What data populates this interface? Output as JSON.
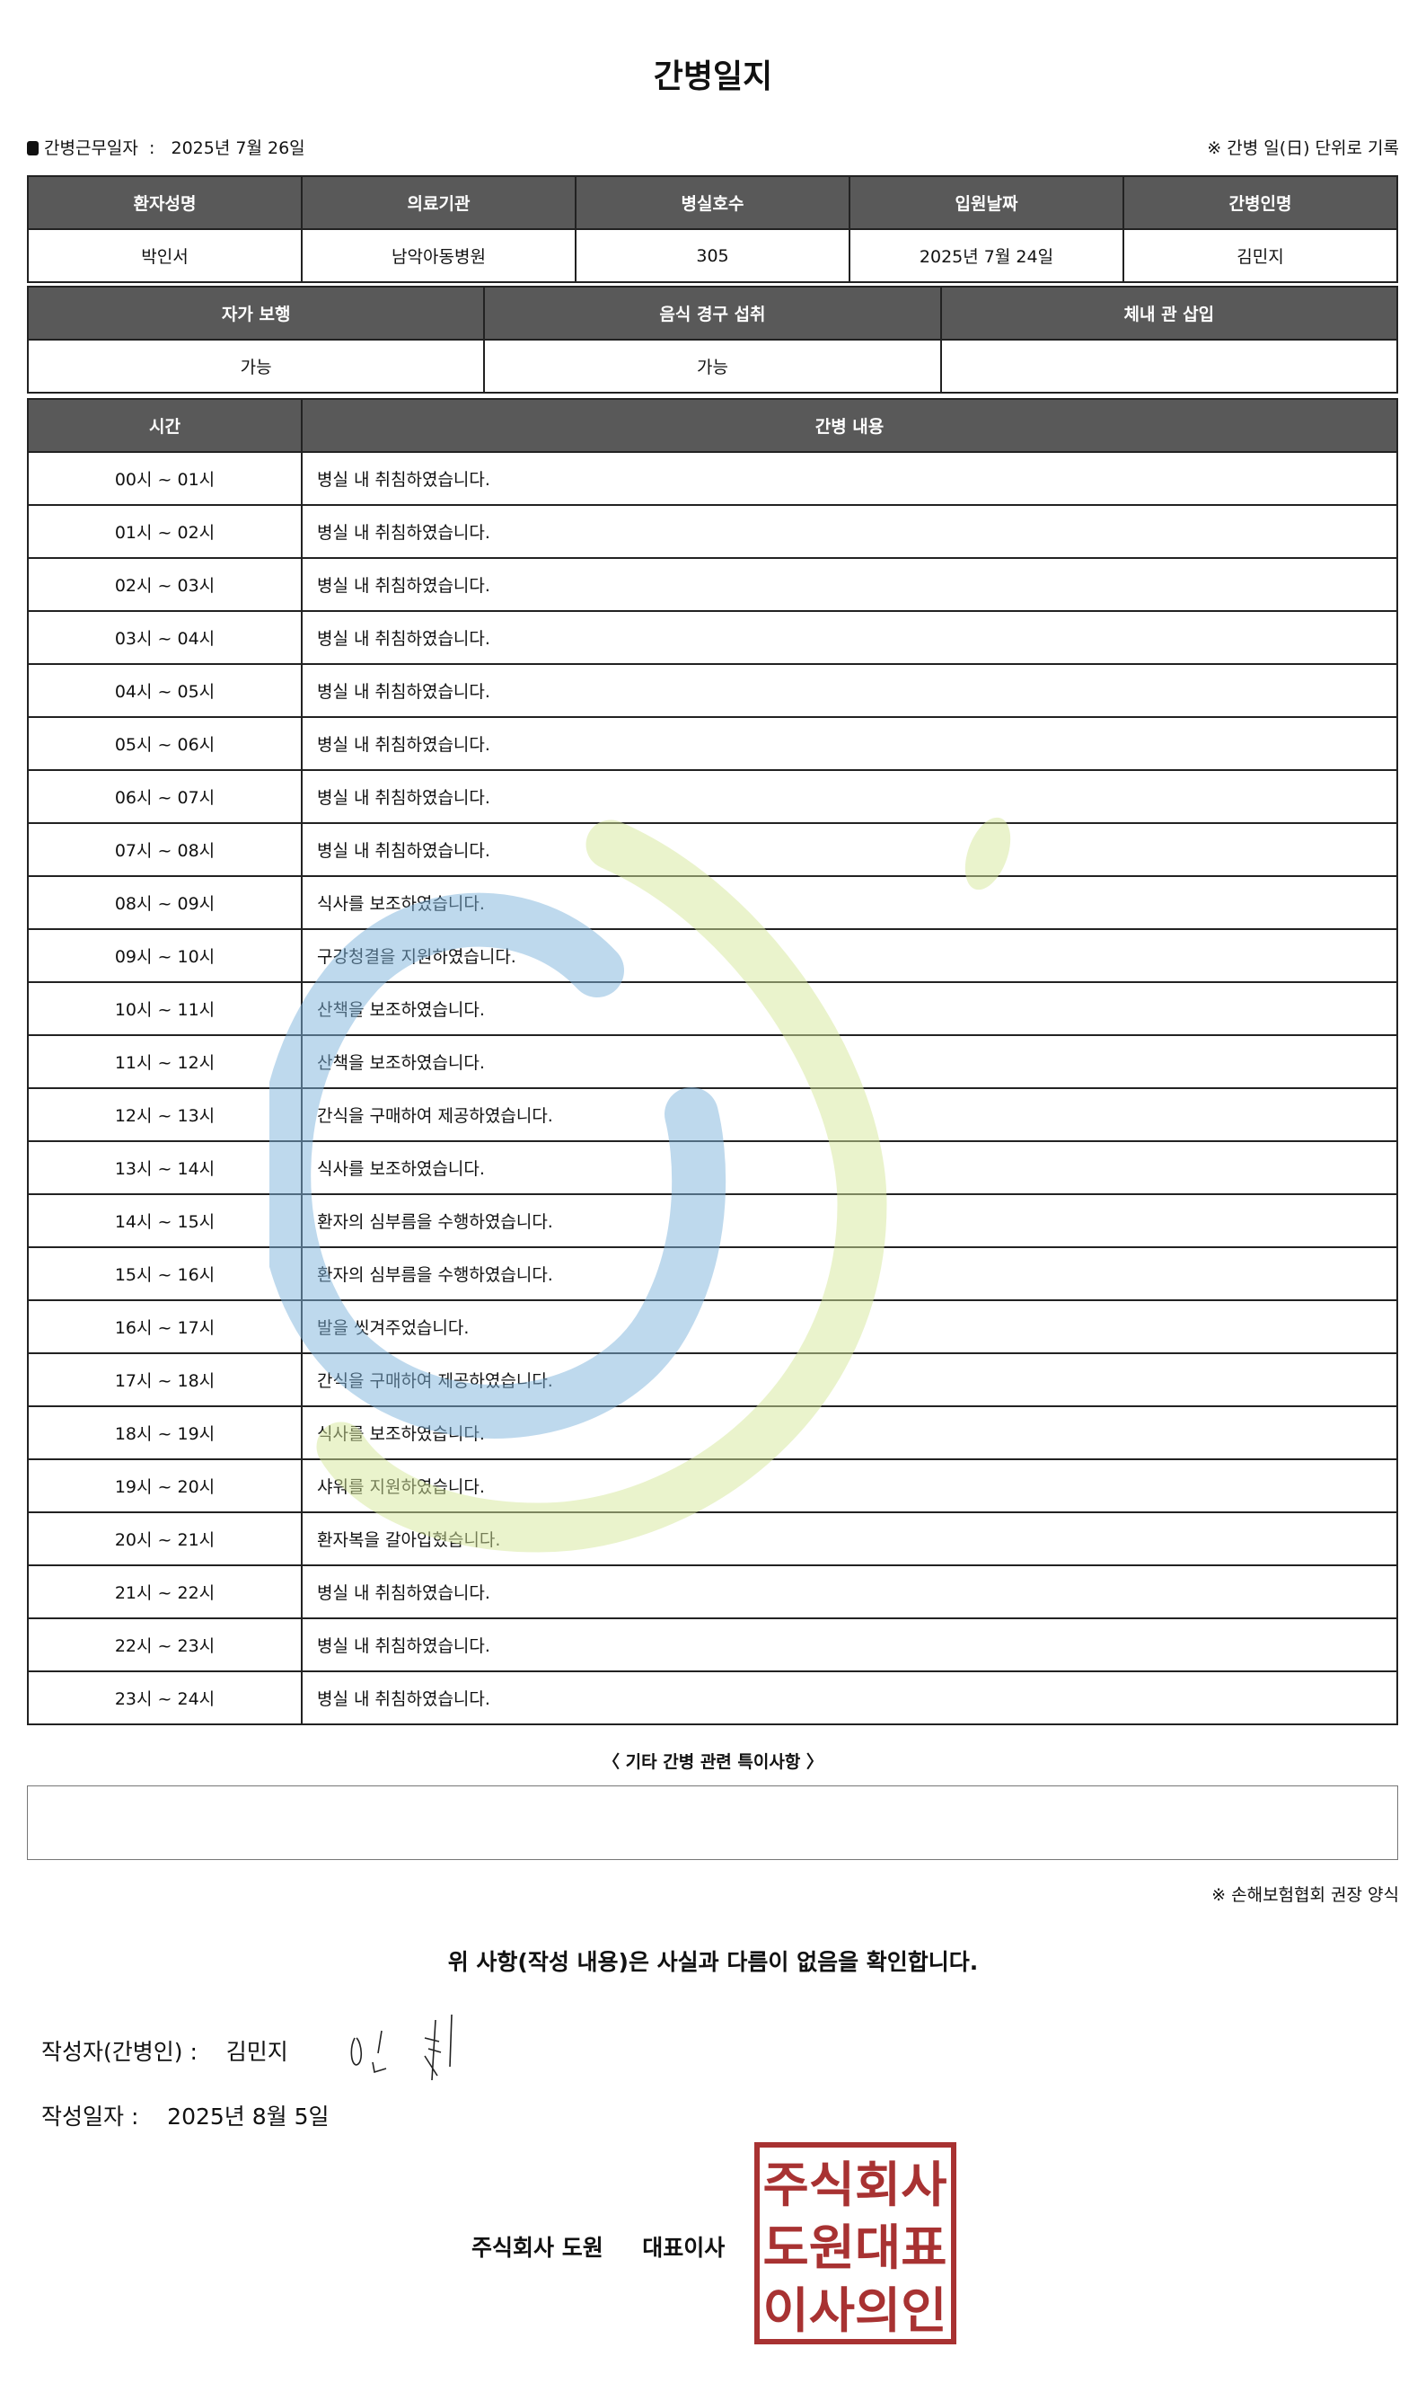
{
  "title": "간병일지",
  "work_date_label": "간병근무일자",
  "work_date": "2025년 7월 26일",
  "note_top": "※ 간병 일(日) 단위로 기록",
  "info": {
    "headers": [
      "환자성명",
      "의료기관",
      "병실호수",
      "입원날짜",
      "간병인명"
    ],
    "values": [
      "박인서",
      "남악아동병원",
      "305",
      "2025년 7월 24일",
      "김민지"
    ]
  },
  "status": {
    "headers": [
      "자가 보행",
      "음식 경구 섭취",
      "체내 관 삽입"
    ],
    "values": [
      "가능",
      "가능",
      ""
    ]
  },
  "log": {
    "headers": [
      "시간",
      "간병 내용"
    ],
    "rows": [
      [
        "00시 ~ 01시",
        "병실 내 취침하였습니다."
      ],
      [
        "01시 ~ 02시",
        "병실 내 취침하였습니다."
      ],
      [
        "02시 ~ 03시",
        "병실 내 취침하였습니다."
      ],
      [
        "03시 ~ 04시",
        "병실 내 취침하였습니다."
      ],
      [
        "04시 ~ 05시",
        "병실 내 취침하였습니다."
      ],
      [
        "05시 ~ 06시",
        "병실 내 취침하였습니다."
      ],
      [
        "06시 ~ 07시",
        "병실 내 취침하였습니다."
      ],
      [
        "07시 ~ 08시",
        "병실 내 취침하였습니다."
      ],
      [
        "08시 ~ 09시",
        "식사를 보조하였습니다."
      ],
      [
        "09시 ~ 10시",
        "구강청결을 지원하였습니다."
      ],
      [
        "10시 ~ 11시",
        "산책을 보조하였습니다."
      ],
      [
        "11시 ~ 12시",
        "산책을 보조하였습니다."
      ],
      [
        "12시 ~ 13시",
        "간식을 구매하여 제공하였습니다."
      ],
      [
        "13시 ~ 14시",
        "식사를 보조하였습니다."
      ],
      [
        "14시 ~ 15시",
        "환자의 심부름을 수행하였습니다."
      ],
      [
        "15시 ~ 16시",
        "환자의 심부름을 수행하였습니다."
      ],
      [
        "16시 ~ 17시",
        "발을 씻겨주었습니다."
      ],
      [
        "17시 ~ 18시",
        "간식을 구매하여 제공하였습니다."
      ],
      [
        "18시 ~ 19시",
        "식사를 보조하였습니다."
      ],
      [
        "19시 ~ 20시",
        "샤워를 지원하였습니다."
      ],
      [
        "20시 ~ 21시",
        "환자복을 갈아입혔습니다."
      ],
      [
        "21시 ~ 22시",
        "병실 내 취침하였습니다."
      ],
      [
        "22시 ~ 23시",
        "병실 내 취침하였습니다."
      ],
      [
        "23시 ~ 24시",
        "병실 내 취침하였습니다."
      ]
    ]
  },
  "remarks_title": "〈 기타 간병 관련 특이사항 〉",
  "remarks": "",
  "form_note": "※ 손해보험협회 권장 양식",
  "confirm": "위 사항(작성 내용)은 사실과 다름이 없음을 확인합니다.",
  "writer_label": "작성자(간병인) :",
  "writer_name": "김민지",
  "date_label": "작성일자 :",
  "date_value": "2025년 8월 5일",
  "company": "주식회사 도원",
  "ceo": "대표이사",
  "stamp_text": [
    "주식회사",
    "도원대표",
    "이사의인"
  ],
  "colors": {
    "header_bg": "#595959",
    "stamp": "#a83232",
    "watermark_blue": "#a9cfe9",
    "watermark_green": "#e4efb6"
  }
}
